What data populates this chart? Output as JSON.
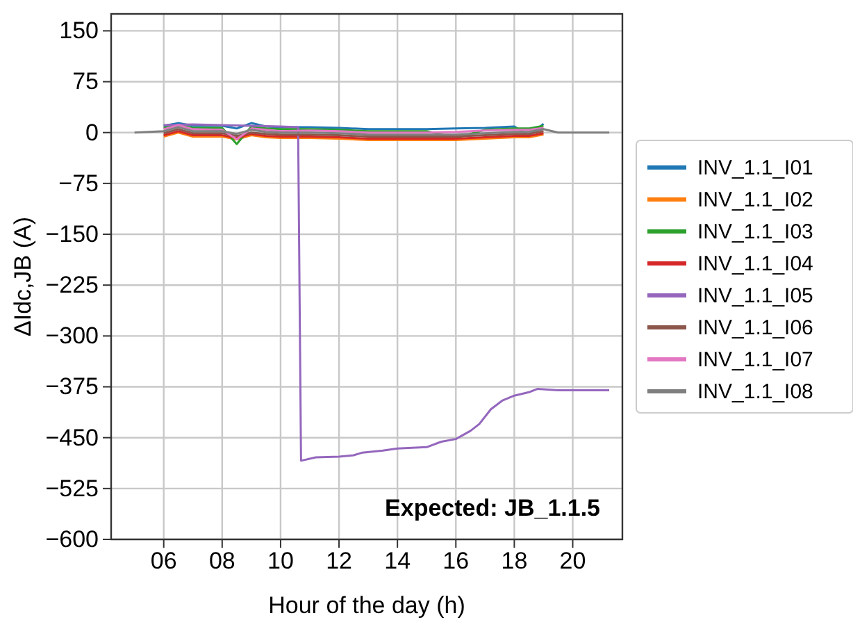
{
  "chart_data": {
    "type": "line",
    "xlabel": "Hour of the day (h)",
    "ylabel": "ΔIdc,JB (A)",
    "xlim": [
      4.2,
      21.7
    ],
    "ylim": [
      -600,
      175
    ],
    "xticks": [
      {
        "value": 6,
        "label": "06"
      },
      {
        "value": 8,
        "label": "08"
      },
      {
        "value": 10,
        "label": "10"
      },
      {
        "value": 12,
        "label": "12"
      },
      {
        "value": 14,
        "label": "14"
      },
      {
        "value": 16,
        "label": "16"
      },
      {
        "value": 18,
        "label": "18"
      },
      {
        "value": 20,
        "label": "20"
      }
    ],
    "yticks": [
      150,
      75,
      0,
      -75,
      -150,
      -225,
      -300,
      -375,
      -450,
      -525,
      -600
    ],
    "grid": true,
    "legend": "right",
    "line_style": "solid",
    "marker": "none",
    "annotations": [
      "Expected: JB_1.1.5"
    ],
    "series": [
      {
        "name": "INV_1.1_I01",
        "color": "#1f77b4",
        "x": [
          6,
          6.5,
          7,
          8,
          8.5,
          9,
          9.5,
          10,
          11,
          12,
          13,
          14,
          15,
          16,
          17,
          18,
          18.5,
          19
        ],
        "values": [
          10,
          14,
          10,
          10,
          6,
          14,
          9,
          8,
          8,
          7,
          5,
          5,
          5,
          6,
          7,
          9,
          -5,
          13
        ]
      },
      {
        "name": "INV_1.1_I02",
        "color": "#ff7f0e",
        "x": [
          6,
          6.5,
          7,
          8,
          8.5,
          9,
          9.5,
          10,
          11,
          12,
          13,
          14,
          15,
          16,
          17,
          18,
          18.5,
          19
        ],
        "values": [
          -6,
          0,
          -6,
          -6,
          -10,
          -4,
          -7,
          -8,
          -8,
          -9,
          -11,
          -11,
          -11,
          -11,
          -9,
          -7,
          -7,
          -3
        ]
      },
      {
        "name": "INV_1.1_I03",
        "color": "#2ca02c",
        "x": [
          6,
          6.5,
          7,
          8,
          8.5,
          9,
          9.5,
          10,
          11,
          12,
          13,
          14,
          15,
          16,
          17,
          18,
          18.5,
          19
        ],
        "values": [
          7,
          11,
          7,
          7,
          -17,
          9,
          6,
          5,
          5,
          4,
          2,
          2,
          2,
          -8,
          4,
          6,
          6,
          10
        ]
      },
      {
        "name": "INV_1.1_I04",
        "color": "#d62728",
        "x": [
          6,
          6.5,
          7,
          8,
          8.5,
          9,
          9.5,
          10,
          11,
          12,
          13,
          14,
          15,
          16,
          17,
          18,
          18.5,
          19
        ],
        "values": [
          -4,
          2,
          -4,
          -4,
          -8,
          -2,
          -5,
          -6,
          -6,
          -7,
          -9,
          -9,
          -9,
          -9,
          -7,
          -5,
          -5,
          -1
        ]
      },
      {
        "name": "INV_1.1_I05",
        "color": "#9467bd",
        "x": [
          6,
          7,
          8,
          9,
          10,
          10.6,
          10.7,
          11.2,
          12,
          12.5,
          12.8,
          13.5,
          14,
          15,
          15.5,
          16,
          16.5,
          16.8,
          17.2,
          17.6,
          18,
          18.5,
          18.8,
          19.5,
          20,
          21.25
        ],
        "values": [
          11,
          12,
          11,
          10,
          9,
          8,
          -484,
          -479,
          -478,
          -476,
          -472,
          -469,
          -466,
          -464,
          -456,
          -452,
          -440,
          -430,
          -408,
          -395,
          -388,
          -383,
          -378,
          -380,
          -380,
          -380
        ]
      },
      {
        "name": "INV_1.1_I06",
        "color": "#8c564b",
        "x": [
          6,
          6.5,
          7,
          8,
          8.5,
          9,
          9.5,
          10,
          11,
          12,
          13,
          14,
          15,
          16,
          17,
          18,
          18.5,
          19
        ],
        "values": [
          -1,
          5,
          -1,
          -1,
          -5,
          0,
          -2,
          -3,
          -3,
          -4,
          -6,
          -6,
          -6,
          -6,
          -4,
          -2,
          -2,
          2
        ]
      },
      {
        "name": "INV_1.1_I07",
        "color": "#e377c2",
        "x": [
          6,
          6.5,
          7,
          8,
          8.5,
          9,
          9.5,
          10,
          11,
          12,
          13,
          14,
          15,
          16,
          17,
          18,
          18.5,
          19
        ],
        "values": [
          5,
          11,
          5,
          4,
          -10,
          6,
          4,
          2,
          3,
          2,
          0,
          0,
          0,
          1,
          3,
          4,
          4,
          7
        ]
      },
      {
        "name": "INV_1.1_I08",
        "color": "#7f7f7f",
        "x": [
          5,
          6,
          6.5,
          7,
          8,
          8.5,
          9,
          9.5,
          10,
          11,
          12,
          13,
          14,
          15,
          16,
          17,
          18,
          18.5,
          19,
          19.5,
          20,
          21.25
        ],
        "values": [
          0,
          2,
          8,
          2,
          2,
          -2,
          4,
          1,
          0,
          0,
          -1,
          -3,
          -3,
          -3,
          -3,
          -1,
          1,
          1,
          5,
          0,
          0,
          0
        ]
      }
    ]
  }
}
